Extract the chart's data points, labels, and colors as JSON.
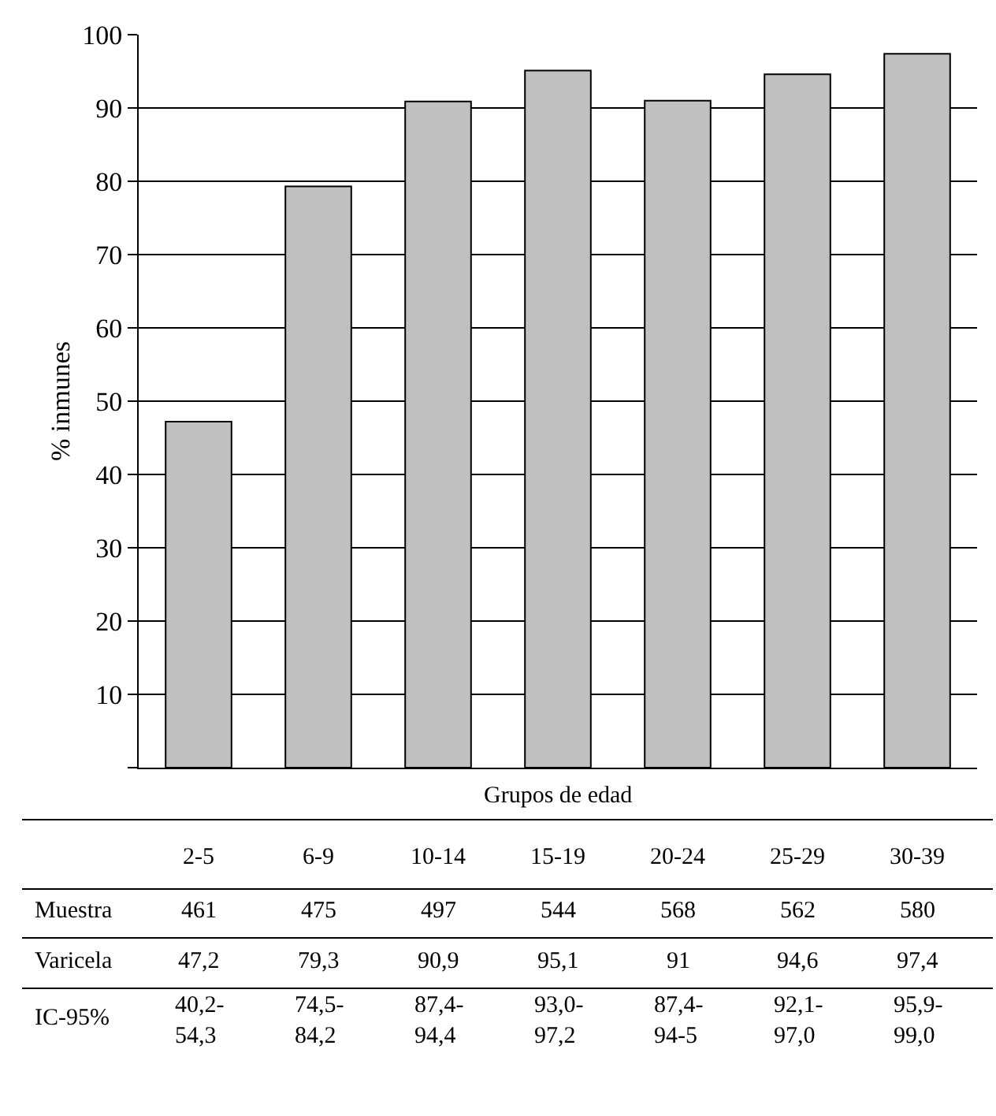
{
  "chart_data": {
    "type": "bar",
    "xlabel": "Grupos de edad",
    "ylabel": "% inmunes",
    "categories": [
      "2-5",
      "6-9",
      "10-14",
      "15-19",
      "20-24",
      "25-29",
      "30-39"
    ],
    "values": [
      47.2,
      79.3,
      90.9,
      95.1,
      91,
      94.6,
      97.4
    ],
    "value_labels": [
      "47,2",
      "79,3",
      "90,9",
      "95,1",
      "91",
      "94,6",
      "97,4"
    ],
    "color": "#c0c0c0",
    "ylim": [
      0,
      100
    ],
    "yticks": [
      {
        "value": 0,
        "label": null
      },
      10,
      20,
      30,
      40,
      50,
      60,
      70,
      80,
      90,
      100
    ],
    "grid": "y",
    "legend": false,
    "annotations": [
      "Muestra",
      "Varicela",
      "IC-95%",
      "461",
      "475",
      "497",
      "544",
      "568",
      "562",
      "580",
      "40,2-54,3",
      "74,5-84,2",
      "87,4-94,4",
      "93,0-97,2",
      "87,4-94-5",
      "92,1-97,0",
      "95,9-99,0"
    ]
  }
}
